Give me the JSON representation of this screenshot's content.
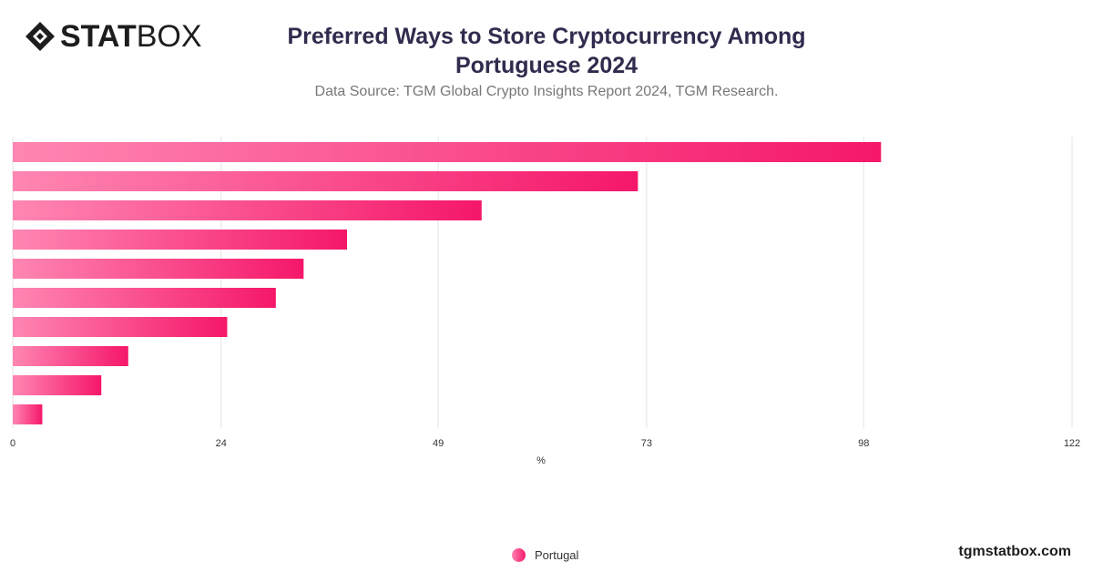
{
  "header": {
    "logo_bold": "STAT",
    "logo_light": "BOX",
    "title": "Preferred Ways to Store Cryptocurrency Among Portuguese 2024",
    "subtitle": "Data Source: TGM Global Crypto Insights Report 2024, TGM Research."
  },
  "footer": {
    "site": "tgmstatbox.com"
  },
  "colors": {
    "bar_start": "#ff86b3",
    "bar_end": "#f5176a",
    "grid": "#e3e3e3",
    "axis_text": "#333333"
  },
  "chart_data": {
    "type": "bar",
    "orientation": "horizontal",
    "title": "Preferred Ways to Store Cryptocurrency Among Portuguese 2024",
    "xlabel": "%",
    "ylabel": "",
    "xlim": [
      0,
      122
    ],
    "xticks": [
      0,
      24,
      49,
      73,
      98,
      122
    ],
    "grid": true,
    "legend_position": "bottom",
    "series": [
      {
        "name": "Portugal",
        "values": [
          100,
          72,
          54,
          38.5,
          33.5,
          30.3,
          24.7,
          13.3,
          10.2,
          3.4
        ]
      }
    ]
  }
}
